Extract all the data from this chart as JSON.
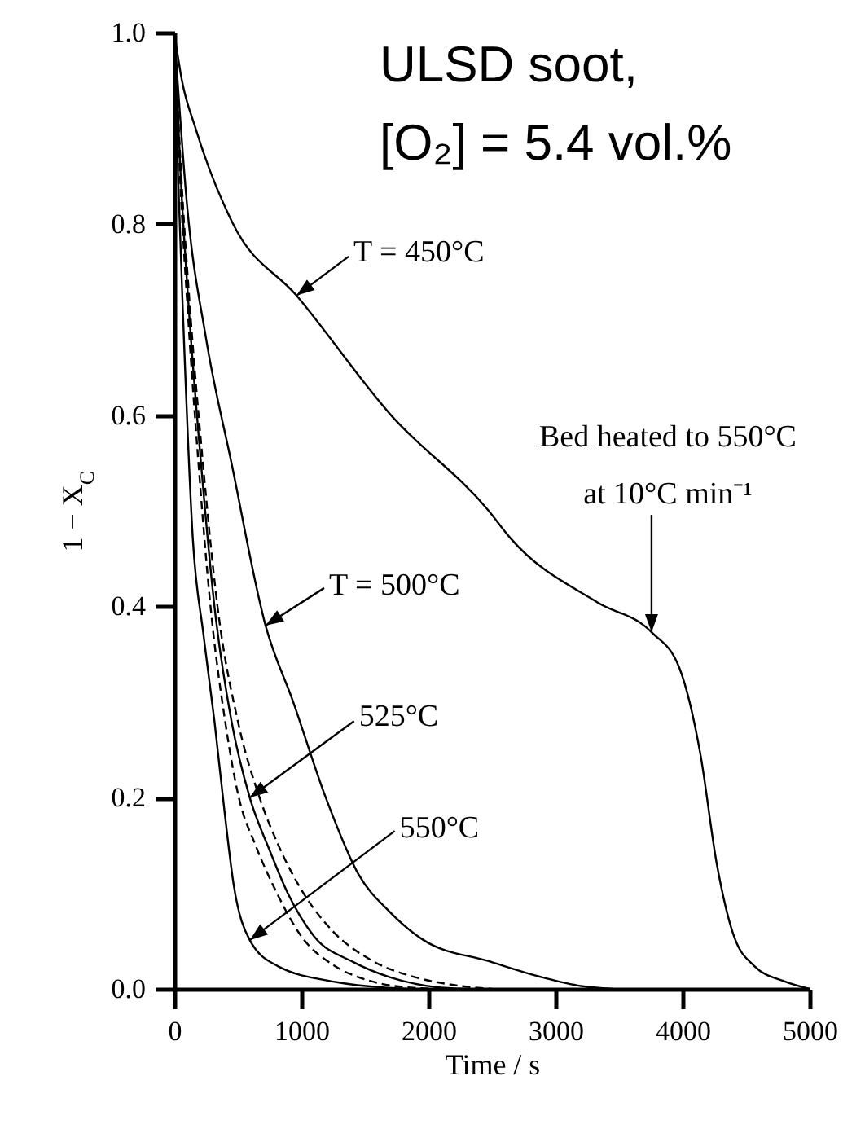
{
  "chart_data": {
    "type": "line",
    "xlabel": "Time / s",
    "ylabel": "1 − X$_{C}$",
    "xlim": [
      0,
      5000
    ],
    "xticks": [
      0,
      1000,
      2000,
      3000,
      4000,
      5000
    ],
    "ylim": [
      0,
      1
    ],
    "yticks": [
      {
        "value": 0,
        "label": "0.0"
      },
      0.2,
      0.4,
      0.6,
      0.8,
      {
        "value": 1,
        "label": "1.0"
      }
    ],
    "series": [
      {
        "color": "#000000",
        "line_style": "solid",
        "x": [
          0,
          60,
          167,
          462,
          962,
          1705,
          2474,
          2641,
          3333,
          3756,
          3974,
          4141,
          4269,
          4397,
          4564,
          4800,
          5000
        ],
        "values": [
          1,
          0.95,
          0.9,
          0.8,
          0.725,
          0.6,
          0.5,
          0.472,
          0.404,
          0.373,
          0.336,
          0.245,
          0.131,
          0.058,
          0.024,
          0.008,
          0
        ]
      },
      {
        "color": "#000000",
        "line_style": "solid",
        "x": [
          0,
          100,
          250,
          450,
          718,
          936,
          1192,
          1449,
          1700,
          1962,
          2474,
          2897,
          3200,
          3450
        ],
        "values": [
          1,
          0.82,
          0.68,
          0.55,
          0.38,
          0.3,
          0.2,
          0.12,
          0.08,
          0.051,
          0.029,
          0.012,
          0.003,
          0
        ]
      },
      {
        "color": "#000000",
        "line_style": "dashed",
        "x": [
          0,
          45,
          110,
          190,
          285,
          400,
          508,
          640,
          808,
          1000,
          1250,
          1500,
          1800,
          2100
        ],
        "values": [
          1,
          0.85,
          0.7,
          0.55,
          0.4,
          0.28,
          0.2,
          0.15,
          0.1,
          0.055,
          0.025,
          0.01,
          0.002,
          0
        ]
      },
      {
        "color": "#000000",
        "line_style": "solid",
        "x": [
          0,
          50,
          120,
          210,
          316,
          450,
          594,
          750,
          893,
          1100,
          1410,
          1700,
          2050,
          2300
        ],
        "values": [
          1,
          0.85,
          0.7,
          0.55,
          0.4,
          0.28,
          0.2,
          0.145,
          0.1,
          0.055,
          0.028,
          0.012,
          0.002,
          0
        ]
      },
      {
        "color": "#000000",
        "line_style": "dashed",
        "x": [
          0,
          55,
          130,
          225,
          340,
          500,
          671,
          820,
          1017,
          1250,
          1550,
          1900,
          2200,
          2500
        ],
        "values": [
          1,
          0.85,
          0.7,
          0.55,
          0.4,
          0.28,
          0.2,
          0.15,
          0.1,
          0.06,
          0.03,
          0.012,
          0.004,
          0
        ]
      },
      {
        "color": "#000000",
        "line_style": "solid",
        "x": [
          0,
          30,
          70,
          145,
          230,
          316,
          400,
          466,
          594,
          812,
          1278,
          1830
        ],
        "values": [
          1,
          0.85,
          0.7,
          0.472,
          0.37,
          0.28,
          0.18,
          0.11,
          0.051,
          0.024,
          0.007,
          0
        ]
      }
    ],
    "annotations": [
      "ULSD soot,",
      "[O₂] = 5.4 vol.%",
      {
        "text": "T = 450°C",
        "x": 962,
        "y": 0.725
      },
      {
        "text": "T = 500°C",
        "x": 718,
        "y": 0.38
      },
      {
        "text": "525°C",
        "x": 594,
        "y": 0.2
      },
      {
        "text": "550°C",
        "x": 594,
        "y": 0.051
      },
      {
        "text": "Bed heated to 550°C\nat 10°C min⁻¹",
        "x": 3756,
        "y": 0.373
      }
    ]
  }
}
